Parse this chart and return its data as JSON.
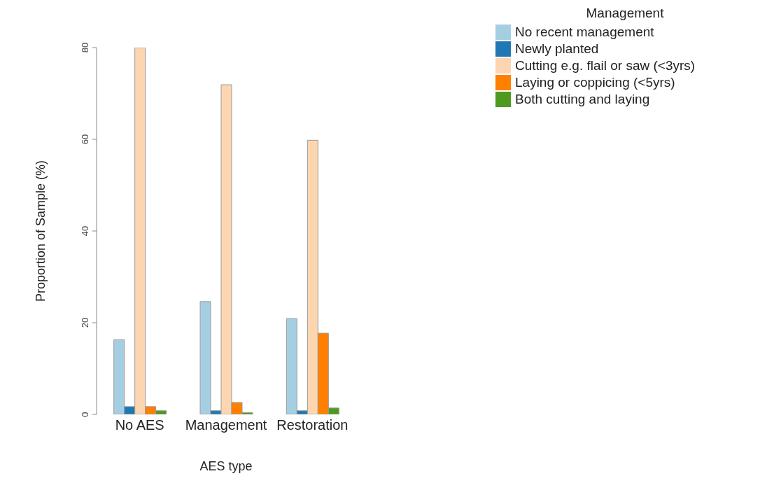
{
  "chart_data": {
    "type": "bar",
    "xlabel": "AES type",
    "ylabel": "Proportion of Sample (%)",
    "legend_title": "Management",
    "categories": [
      "No AES",
      "Management",
      "Restoration"
    ],
    "series": [
      {
        "name": "No recent management",
        "color": "#a6cee3",
        "values": [
          16.3,
          24.6,
          20.9
        ]
      },
      {
        "name": "Newly planted",
        "color": "#1f78b4",
        "values": [
          1.7,
          0.8,
          0.8
        ]
      },
      {
        "name": "Cutting e.g. flail or saw (<3yrs)",
        "color": "#fdd5b1",
        "values": [
          80,
          71.9,
          59.8
        ]
      },
      {
        "name": "Laying or coppicing (<5yrs)",
        "color": "#ff7f00",
        "values": [
          1.7,
          2.6,
          17.7
        ]
      },
      {
        "name": "Both cutting and laying",
        "color": "#4d9a1f",
        "values": [
          0.8,
          0.4,
          1.4
        ]
      }
    ],
    "ylim": [
      0,
      80
    ],
    "yticks": [
      0,
      20,
      40,
      60,
      80
    ],
    "grid": false,
    "legend": "top right"
  }
}
